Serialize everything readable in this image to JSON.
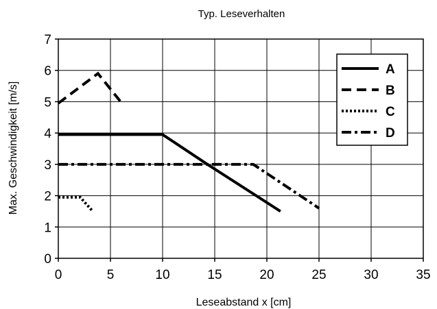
{
  "chart_data": {
    "type": "line",
    "title": "Typ. Leseverhalten",
    "xlabel": "Leseabstand x [cm]",
    "ylabel": "Max. Geschwindigkeit [m/s]",
    "xlim": [
      0,
      35
    ],
    "ylim": [
      0,
      7
    ],
    "xticks": [
      0,
      5,
      10,
      15,
      20,
      25,
      30,
      35
    ],
    "yticks": [
      0,
      1,
      2,
      3,
      4,
      5,
      6,
      7
    ],
    "grid": true,
    "legend_position": "top-right",
    "series": [
      {
        "name": "A",
        "style": "solid",
        "x": [
          0,
          10,
          14.3,
          21.3
        ],
        "y": [
          3.95,
          3.95,
          3.0,
          1.5
        ]
      },
      {
        "name": "B",
        "style": "dashed",
        "x": [
          0,
          3.8,
          6.1
        ],
        "y": [
          4.95,
          5.9,
          4.95
        ]
      },
      {
        "name": "C",
        "style": "dotted",
        "x": [
          0,
          2.1,
          3.3
        ],
        "y": [
          1.95,
          1.95,
          1.5
        ]
      },
      {
        "name": "D",
        "style": "dashdot",
        "x": [
          0,
          18.7,
          25.0
        ],
        "y": [
          3.0,
          3.0,
          1.6
        ]
      }
    ]
  }
}
